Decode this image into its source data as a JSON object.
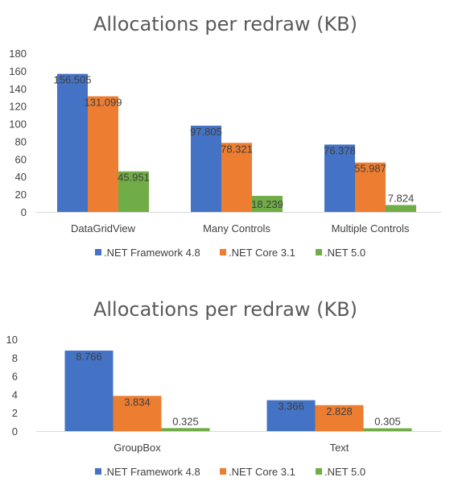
{
  "colors": {
    "series": [
      "#4472c4",
      "#ed7d31",
      "#70ad47"
    ],
    "axis": "#d9d9d9",
    "text": "#404040",
    "title": "#595959"
  },
  "chart_data": [
    {
      "type": "bar",
      "title": "Allocations per redraw (KB)",
      "xlabel": "",
      "ylabel": "",
      "ylim": [
        0,
        180
      ],
      "yticks": [
        0,
        20,
        40,
        60,
        80,
        100,
        120,
        140,
        160,
        180
      ],
      "grid": false,
      "legend_position": "bottom",
      "categories": [
        "DataGridView",
        "Many Controls",
        "Multiple Controls"
      ],
      "series": [
        {
          "name": ".NET Framework 4.8",
          "values": [
            156.505,
            97.805,
            76.378
          ],
          "labels": [
            "156.505",
            "97.805",
            "76.378"
          ]
        },
        {
          "name": ".NET Core 3.1",
          "values": [
            131.099,
            78.321,
            55.987
          ],
          "labels": [
            "131.099",
            "78.321",
            "55.987"
          ]
        },
        {
          "name": ".NET 5.0",
          "values": [
            45.951,
            18.239,
            7.824
          ],
          "labels": [
            "45.951",
            "18.239",
            "7.824"
          ]
        }
      ]
    },
    {
      "type": "bar",
      "title": "Allocations per redraw (KB)",
      "xlabel": "",
      "ylabel": "",
      "ylim": [
        0,
        10
      ],
      "yticks": [
        0,
        2,
        4,
        6,
        8,
        10
      ],
      "grid": false,
      "legend_position": "bottom",
      "categories": [
        "GroupBox",
        "Text"
      ],
      "series": [
        {
          "name": ".NET Framework 4.8",
          "values": [
            8.766,
            3.366
          ],
          "labels": [
            "8.766",
            "3.366"
          ]
        },
        {
          "name": ".NET Core 3.1",
          "values": [
            3.834,
            2.828
          ],
          "labels": [
            "3.834",
            "2.828"
          ]
        },
        {
          "name": ".NET 5.0",
          "values": [
            0.325,
            0.305
          ],
          "labels": [
            "0.325",
            "0.305"
          ]
        }
      ]
    }
  ]
}
